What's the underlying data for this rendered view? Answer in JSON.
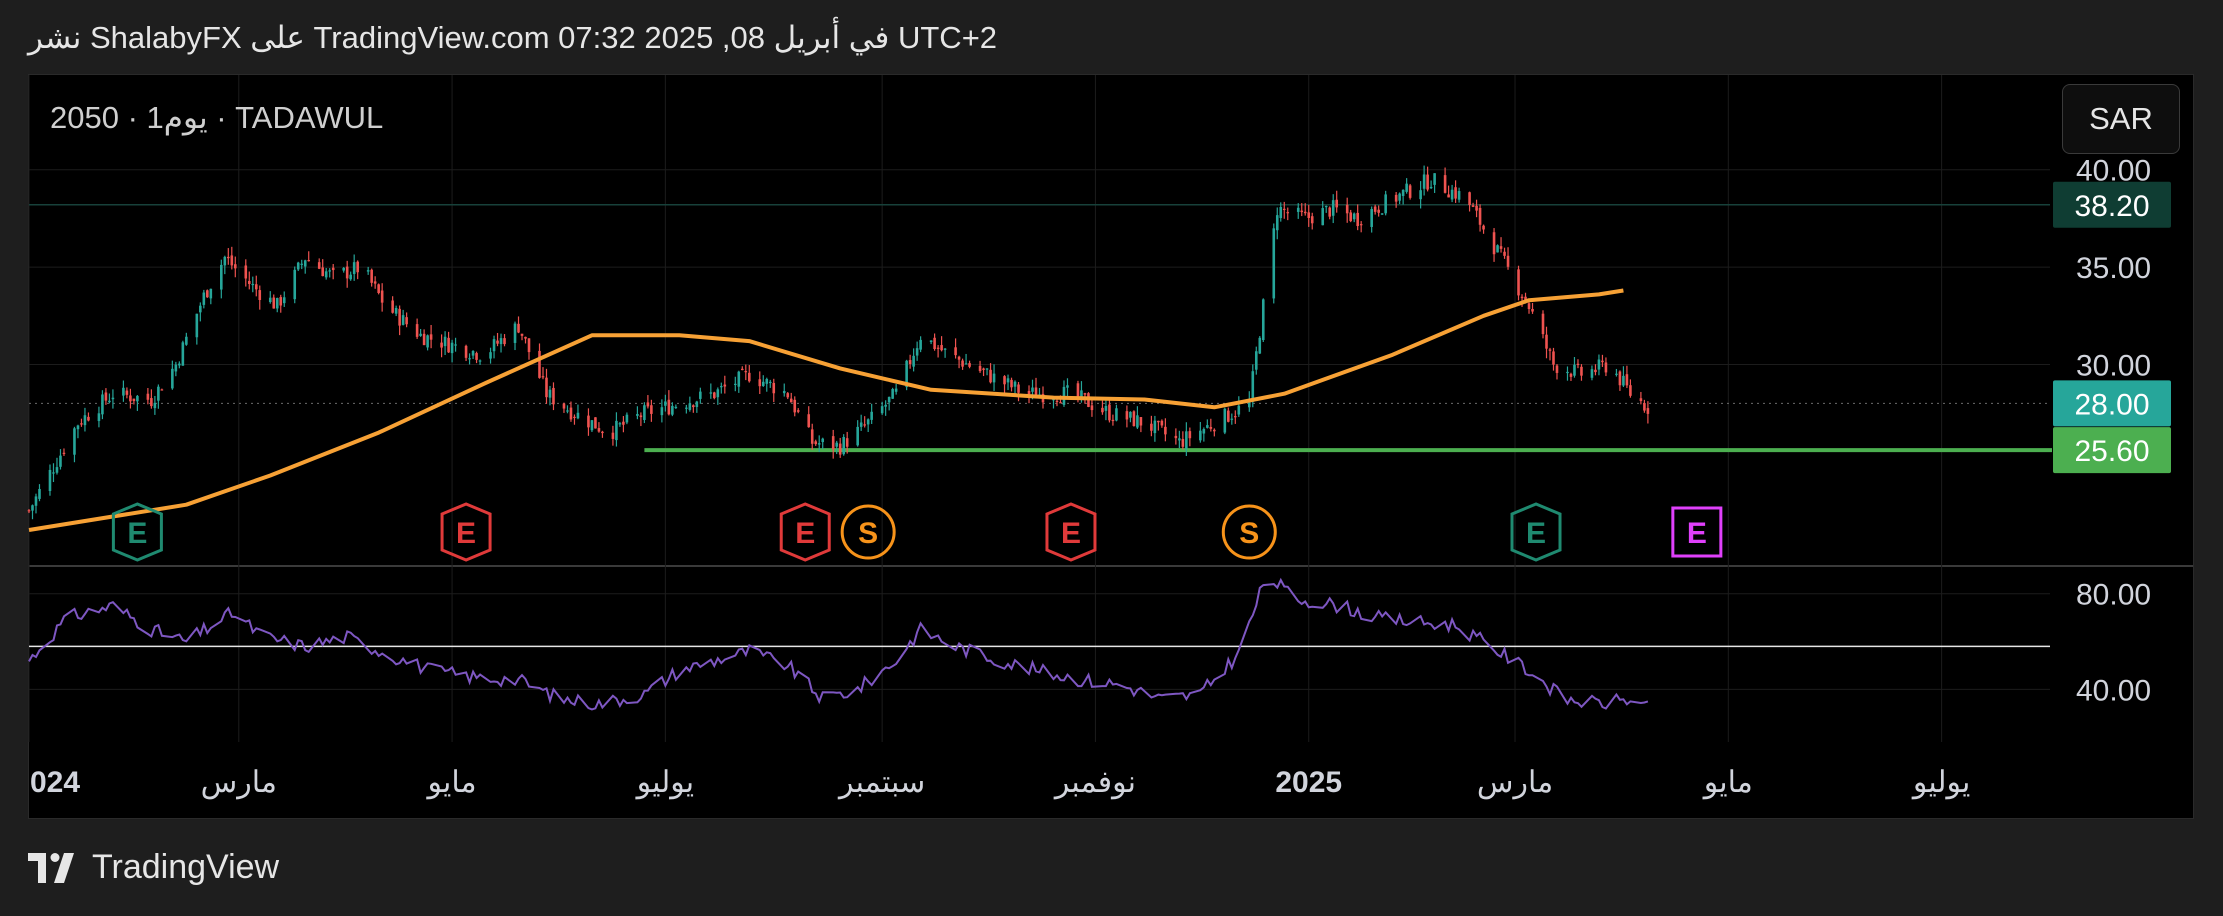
{
  "header": {
    "caption": "نشر ShalabyFX على TradingView.com 07:32 2025 ,08 في أبريل UTC+2"
  },
  "chart_header": {
    "symbol_line": "2050 · 1يوم · TADAWUL",
    "currency": "SAR"
  },
  "footer": {
    "brand": "TradingView"
  },
  "colors": {
    "background": "#000000",
    "up_candle": "#26a69a",
    "down_candle": "#ef5350",
    "moving_average": "#f7a135",
    "support_line": "#4caf50",
    "rsi_line": "#7e57c2",
    "earnings_past_green": "#1f8a70",
    "earnings_past_red": "#e03a3a",
    "earnings_future": "#e040fb",
    "split_marker": "#f7931a"
  },
  "chart_data": [
    {
      "type": "candlestick",
      "x_ticks": [
        "024",
        "مارس",
        "مايو",
        "يوليو",
        "سبتمبر",
        "نوفمبر",
        "2025",
        "مارس",
        "مايو",
        "يوليو"
      ],
      "y_ticks": [
        "40.00",
        "35.00",
        "30.00"
      ],
      "ylim": [
        21.5,
        40.5
      ],
      "price_labels": [
        {
          "value": 38.2,
          "text": "38.20",
          "color": "#0f3d33",
          "style": "line"
        },
        {
          "value": 28.0,
          "text": "28.00",
          "color": "#26a69a",
          "style": "dotted"
        },
        {
          "value": 25.6,
          "text": "25.60",
          "color": "#4caf50",
          "style": "support"
        }
      ],
      "support_line": {
        "value": 25.6,
        "start_date": "2024-06-25"
      },
      "close_series": [
        [
          "2024-01-01",
          22.5
        ],
        [
          "2024-01-15",
          27.0
        ],
        [
          "2024-01-25",
          28.5
        ],
        [
          "2024-02-05",
          28.2
        ],
        [
          "2024-02-12",
          30.0
        ],
        [
          "2024-02-20",
          33.5
        ],
        [
          "2024-02-26",
          35.5
        ],
        [
          "2024-03-05",
          34.0
        ],
        [
          "2024-03-12",
          33.0
        ],
        [
          "2024-03-20",
          35.5
        ],
        [
          "2024-03-28",
          34.5
        ],
        [
          "2024-04-05",
          35.0
        ],
        [
          "2024-04-12",
          33.0
        ],
        [
          "2024-04-22",
          31.5
        ],
        [
          "2024-05-01",
          31.0
        ],
        [
          "2024-05-10",
          30.5
        ],
        [
          "2024-05-20",
          32.0
        ],
        [
          "2024-05-28",
          28.5
        ],
        [
          "2024-06-05",
          27.5
        ],
        [
          "2024-06-15",
          26.5
        ],
        [
          "2024-06-25",
          27.5
        ],
        [
          "2024-07-05",
          28.0
        ],
        [
          "2024-07-15",
          28.5
        ],
        [
          "2024-07-25",
          29.5
        ],
        [
          "2024-08-05",
          28.5
        ],
        [
          "2024-08-12",
          26.0
        ],
        [
          "2024-08-20",
          25.8
        ],
        [
          "2024-08-28",
          27.0
        ],
        [
          "2024-09-05",
          28.5
        ],
        [
          "2024-09-12",
          31.5
        ],
        [
          "2024-09-20",
          30.5
        ],
        [
          "2024-10-01",
          29.5
        ],
        [
          "2024-10-12",
          28.5
        ],
        [
          "2024-10-25",
          28.5
        ],
        [
          "2024-11-05",
          27.5
        ],
        [
          "2024-11-15",
          27.0
        ],
        [
          "2024-11-25",
          26.0
        ],
        [
          "2024-12-05",
          27.0
        ],
        [
          "2024-12-15",
          28.0
        ],
        [
          "2024-12-23",
          38.0
        ],
        [
          "2024-12-31",
          37.5
        ],
        [
          "2025-01-08",
          38.0
        ],
        [
          "2025-01-15",
          37.5
        ],
        [
          "2025-01-25",
          38.5
        ],
        [
          "2025-02-05",
          39.5
        ],
        [
          "2025-02-15",
          38.5
        ],
        [
          "2025-02-25",
          35.5
        ],
        [
          "2025-03-05",
          33.0
        ],
        [
          "2025-03-12",
          30.0
        ],
        [
          "2025-03-20",
          29.5
        ],
        [
          "2025-03-28",
          30.0
        ],
        [
          "2025-04-03",
          28.5
        ],
        [
          "2025-04-08",
          27.8
        ]
      ],
      "moving_average": [
        [
          "2024-01-01",
          21.5
        ],
        [
          "2024-02-15",
          22.8
        ],
        [
          "2024-03-10",
          24.3
        ],
        [
          "2024-04-10",
          26.5
        ],
        [
          "2024-05-10",
          29.0
        ],
        [
          "2024-06-10",
          31.5
        ],
        [
          "2024-07-05",
          31.5
        ],
        [
          "2024-07-25",
          31.2
        ],
        [
          "2024-08-20",
          29.8
        ],
        [
          "2024-09-15",
          28.7
        ],
        [
          "2024-10-20",
          28.3
        ],
        [
          "2024-11-15",
          28.2
        ],
        [
          "2024-12-05",
          27.8
        ],
        [
          "2024-12-25",
          28.5
        ],
        [
          "2025-01-25",
          30.5
        ],
        [
          "2025-02-20",
          32.5
        ],
        [
          "2025-03-05",
          33.3
        ],
        [
          "2025-03-25",
          33.6
        ],
        [
          "2025-04-01",
          33.8
        ]
      ],
      "events": [
        {
          "label": "E",
          "date": "2024-02-01",
          "kind": "earnings_past_green"
        },
        {
          "label": "E",
          "date": "2024-05-05",
          "kind": "earnings_past_red"
        },
        {
          "label": "E",
          "date": "2024-08-10",
          "kind": "earnings_past_red"
        },
        {
          "label": "S",
          "date": "2024-08-28",
          "kind": "split"
        },
        {
          "label": "E",
          "date": "2024-10-25",
          "kind": "earnings_past_red"
        },
        {
          "label": "S",
          "date": "2024-12-15",
          "kind": "split"
        },
        {
          "label": "E",
          "date": "2025-03-07",
          "kind": "earnings_past_green"
        },
        {
          "label": "E",
          "date": "2025-04-22",
          "kind": "earnings_future"
        }
      ]
    },
    {
      "type": "line",
      "name": "",
      "y_ticks": [
        "80.00",
        "40.00"
      ],
      "ylim": [
        18,
        92
      ],
      "reference_line": 58,
      "series": [
        [
          "2024-01-01",
          52
        ],
        [
          "2024-01-12",
          70
        ],
        [
          "2024-01-25",
          75
        ],
        [
          "2024-02-05",
          65
        ],
        [
          "2024-02-15",
          60
        ],
        [
          "2024-02-28",
          72
        ],
        [
          "2024-03-08",
          62
        ],
        [
          "2024-03-20",
          58
        ],
        [
          "2024-04-01",
          62
        ],
        [
          "2024-04-12",
          55
        ],
        [
          "2024-04-25",
          48
        ],
        [
          "2024-05-08",
          45
        ],
        [
          "2024-05-20",
          44
        ],
        [
          "2024-06-01",
          36
        ],
        [
          "2024-06-12",
          34
        ],
        [
          "2024-06-25",
          38
        ],
        [
          "2024-07-05",
          48
        ],
        [
          "2024-07-15",
          52
        ],
        [
          "2024-07-25",
          56
        ],
        [
          "2024-08-05",
          50
        ],
        [
          "2024-08-15",
          36
        ],
        [
          "2024-08-25",
          40
        ],
        [
          "2024-09-05",
          52
        ],
        [
          "2024-09-12",
          65
        ],
        [
          "2024-09-22",
          58
        ],
        [
          "2024-10-05",
          52
        ],
        [
          "2024-10-15",
          48
        ],
        [
          "2024-10-28",
          44
        ],
        [
          "2024-11-08",
          42
        ],
        [
          "2024-11-20",
          36
        ],
        [
          "2024-12-01",
          38
        ],
        [
          "2024-12-12",
          55
        ],
        [
          "2024-12-20",
          88
        ],
        [
          "2024-12-28",
          78
        ],
        [
          "2025-01-10",
          75
        ],
        [
          "2025-01-20",
          70
        ],
        [
          "2025-02-01",
          68
        ],
        [
          "2025-02-12",
          67
        ],
        [
          "2025-02-22",
          58
        ],
        [
          "2025-03-05",
          48
        ],
        [
          "2025-03-15",
          36
        ],
        [
          "2025-03-25",
          34
        ],
        [
          "2025-04-03",
          36
        ],
        [
          "2025-04-08",
          32
        ]
      ]
    }
  ]
}
